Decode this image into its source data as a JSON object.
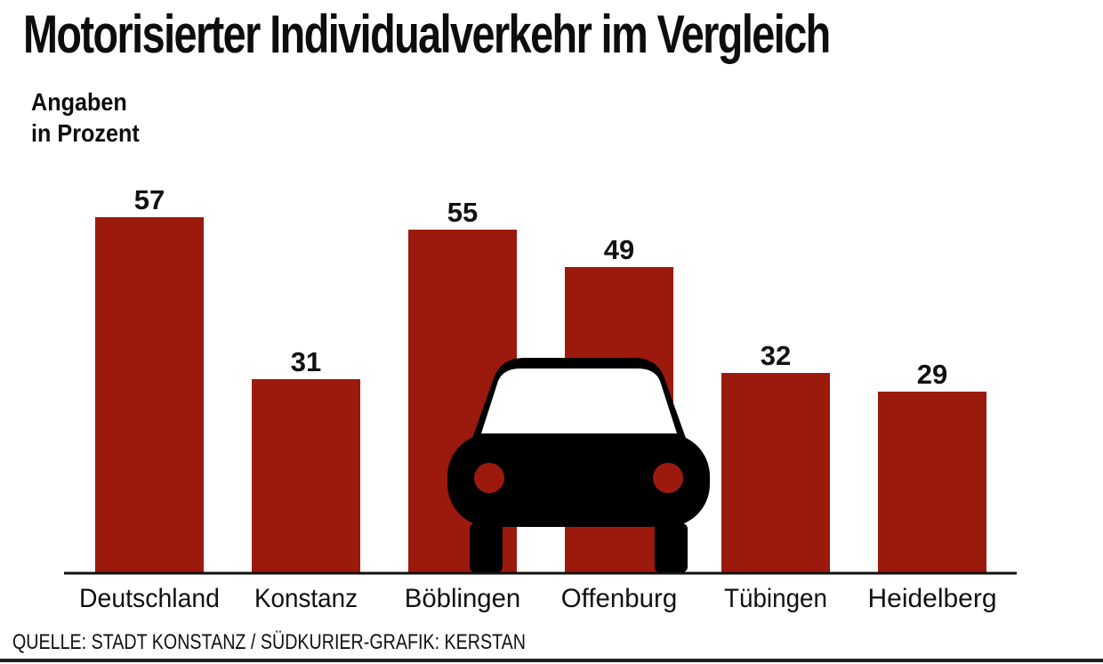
{
  "title": "Motorisierter Individualverkehr im Vergleich",
  "subtitle": [
    "Angaben",
    "in Prozent"
  ],
  "source": "QUELLE: STADT KONSTANZ / SÜDKURIER-GRAFIK: KERSTAN",
  "colors": {
    "bar": "#9b1a0d",
    "axis": "#111111",
    "icon": "#000000"
  },
  "illustration": "car-icon",
  "chart_data": {
    "type": "bar",
    "categories": [
      "Deutschland",
      "Konstanz",
      "Böblingen",
      "Offenburg",
      "Tübingen",
      "Heidelberg"
    ],
    "values": [
      57,
      31,
      55,
      49,
      32,
      29
    ],
    "unit": "%",
    "title": "Motorisierter Individualverkehr im Vergleich",
    "ylabel": "",
    "xlabel": "",
    "ylim": [
      0,
      57
    ],
    "grid": false,
    "data_labels": true
  }
}
